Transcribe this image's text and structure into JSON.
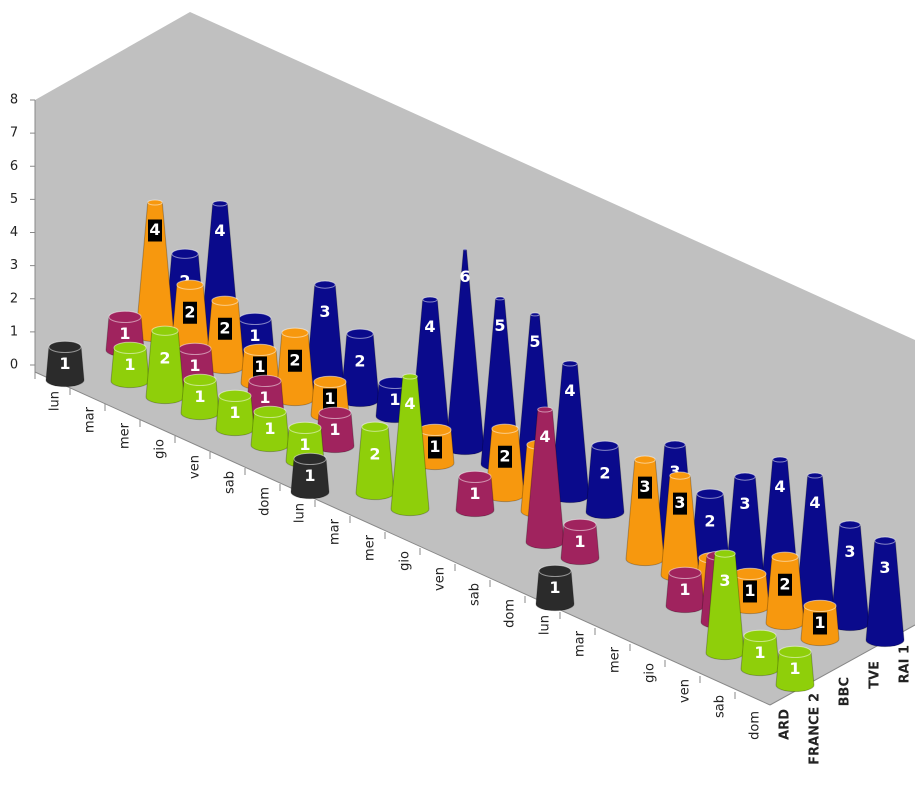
{
  "chart_data": {
    "type": "cone3d",
    "categories": [
      "lun",
      "mar",
      "mer",
      "gio",
      "ven",
      "sab",
      "dom",
      "lun",
      "mar",
      "mer",
      "gio",
      "ven",
      "sab",
      "dom",
      "lun",
      "mar",
      "mer",
      "gio",
      "ven",
      "sab",
      "dom"
    ],
    "series": [
      {
        "name": "ARD",
        "color": "#2b2b2b",
        "values": [
          1,
          null,
          null,
          null,
          null,
          null,
          null,
          1,
          null,
          null,
          null,
          null,
          null,
          null,
          1,
          null,
          null,
          null,
          null,
          null,
          null
        ]
      },
      {
        "name": "FRANCE 2",
        "color": "#8fcf0a",
        "values": [
          null,
          1,
          2,
          1,
          1,
          1,
          1,
          null,
          2,
          4,
          null,
          null,
          null,
          null,
          null,
          null,
          null,
          null,
          3,
          1,
          1
        ]
      },
      {
        "name": "BBC",
        "color": "#a0235e",
        "values": [
          1,
          null,
          1,
          null,
          1,
          null,
          1,
          null,
          null,
          null,
          1,
          null,
          4,
          1,
          null,
          null,
          1,
          2,
          null,
          null,
          null
        ]
      },
      {
        "name": "TVE",
        "color": "#f7980e",
        "values": [
          4,
          2,
          2,
          1,
          2,
          1,
          null,
          null,
          1,
          null,
          2,
          2,
          null,
          null,
          3,
          3,
          1,
          1,
          2,
          1,
          null
        ]
      },
      {
        "name": "RAI 1",
        "color": "#0a0a8c",
        "values": [
          2,
          4,
          1,
          null,
          3,
          2,
          1,
          4,
          6,
          5,
          5,
          4,
          2,
          null,
          3,
          2,
          3,
          4,
          4,
          3,
          3
        ]
      }
    ],
    "ylim": [
      0,
      8
    ],
    "yticks": [
      0,
      1,
      2,
      3,
      4,
      5,
      6,
      7,
      8
    ]
  }
}
